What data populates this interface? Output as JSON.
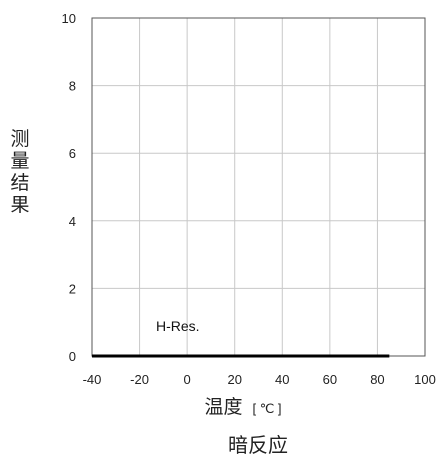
{
  "chart_data": {
    "type": "line",
    "title": "",
    "caption": "暗反应",
    "xlabel": "温度",
    "xunit": "[ ℃ ]",
    "ylabel": "测量结果",
    "xlim": [
      -40,
      100
    ],
    "ylim": [
      0,
      10
    ],
    "xticks": [
      -40,
      -20,
      0,
      20,
      40,
      60,
      80,
      100
    ],
    "yticks": [
      0,
      2,
      4,
      6,
      8,
      10
    ],
    "grid": true,
    "series": [
      {
        "name": "H-Res.",
        "x": [
          -40,
          -20,
          0,
          20,
          40,
          60,
          80,
          85
        ],
        "y": [
          0,
          0,
          0,
          0,
          0,
          0,
          0,
          0
        ],
        "color": "#000000"
      }
    ]
  }
}
